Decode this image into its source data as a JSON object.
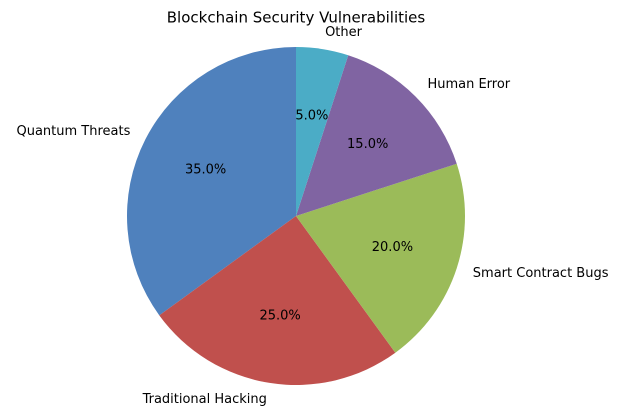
{
  "chart_data": {
    "type": "pie",
    "title": "Blockchain Security Vulnerabilities",
    "categories": [
      "Quantum Threats",
      "Traditional Hacking",
      "Smart Contract Bugs",
      "Human Error",
      "Other"
    ],
    "values": [
      35,
      25,
      20,
      15,
      5
    ],
    "value_labels": [
      "35.0%",
      "25.0%",
      "20.0%",
      "15.0%",
      "5.0%"
    ],
    "colors": [
      "#4f81bd",
      "#c0504d",
      "#9bbb59",
      "#8064a2",
      "#4bacc6"
    ]
  }
}
